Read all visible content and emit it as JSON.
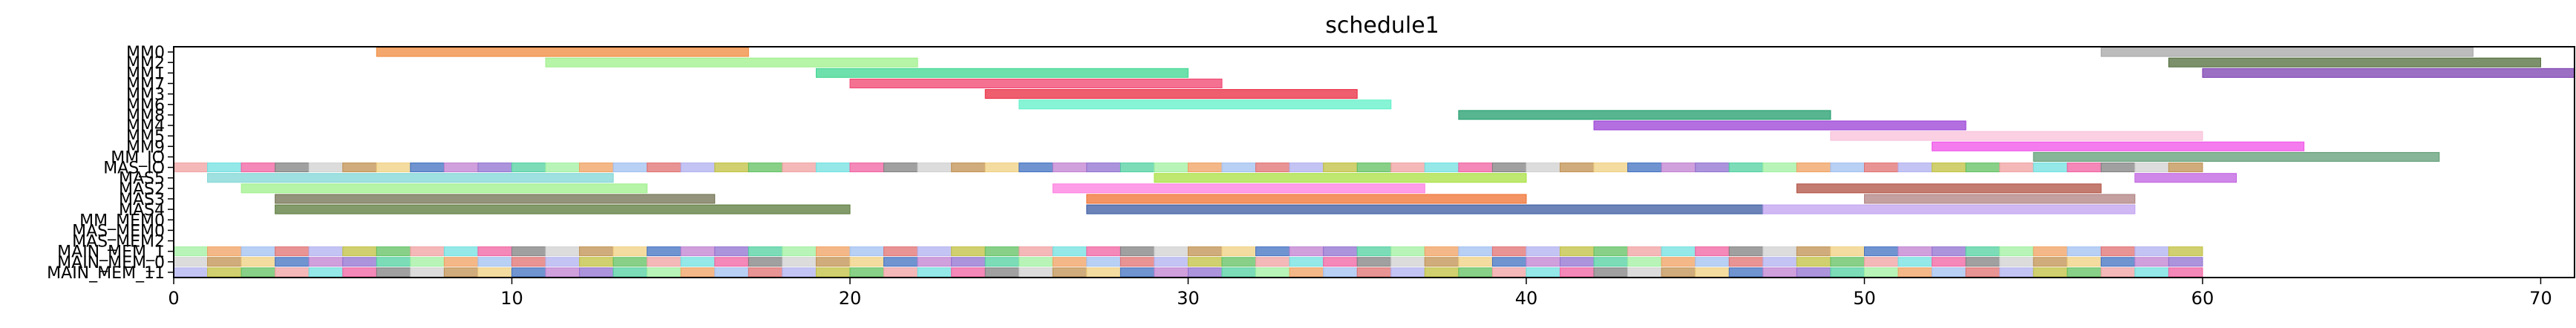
{
  "chart_data": {
    "type": "gantt",
    "title": "schedule1",
    "xlim": [
      0,
      71
    ],
    "x_ticks": [
      0,
      10,
      20,
      30,
      40,
      50,
      60,
      70
    ],
    "x_tick_labels": [
      "0",
      "10",
      "20",
      "30",
      "40",
      "50",
      "60",
      "70"
    ],
    "grid": false,
    "categories": [
      "MM0",
      "MM2",
      "MM1",
      "MM7",
      "MM3",
      "MM6",
      "MM8",
      "MM4",
      "MM5",
      "MM9",
      "MM_IO",
      "MAS_IO",
      "MAS5",
      "MAS2",
      "MAS3",
      "MAS4",
      "MM_MEM0",
      "MAS_MEM0",
      "MAS_MEM2",
      "MAIN_MEM_1",
      "MAIN_MEM_0",
      "MAIN_MEM_11"
    ],
    "tasks": [
      {
        "row": "MM0",
        "start": 6,
        "end": 17,
        "color": "#f08a3c"
      },
      {
        "row": "MM0",
        "start": 57,
        "end": 68,
        "color": "#a6a6a6"
      },
      {
        "row": "MM2",
        "start": 11,
        "end": 22,
        "color": "#9ef08a"
      },
      {
        "row": "MM2",
        "start": 59,
        "end": 70,
        "color": "#4f6b3a"
      },
      {
        "row": "MM1",
        "start": 19,
        "end": 30,
        "color": "#3ed68f"
      },
      {
        "row": "MM1",
        "start": 60,
        "end": 71,
        "color": "#7a3fb0"
      },
      {
        "row": "MM7",
        "start": 20,
        "end": 31,
        "color": "#f0426e"
      },
      {
        "row": "MM3",
        "start": 24,
        "end": 35,
        "color": "#e8283f"
      },
      {
        "row": "MM6",
        "start": 25,
        "end": 36,
        "color": "#60f0c8"
      },
      {
        "row": "MM8",
        "start": 38,
        "end": 49,
        "color": "#1f9c6b"
      },
      {
        "row": "MM4",
        "start": 42,
        "end": 53,
        "color": "#9a3fd6"
      },
      {
        "row": "MM5",
        "start": 49,
        "end": 60,
        "color": "#f8c0d8"
      },
      {
        "row": "MM9",
        "start": 52,
        "end": 63,
        "color": "#f050e8"
      },
      {
        "row": "MM_IO",
        "start": 55,
        "end": 67,
        "color": "#5f9c74"
      },
      {
        "row": "MAS5",
        "start": 1,
        "end": 13,
        "color": "#7fd6d6"
      },
      {
        "row": "MAS5",
        "start": 29,
        "end": 40,
        "color": "#a8e040"
      },
      {
        "row": "MAS5",
        "start": 58,
        "end": 61,
        "color": "#c060e0"
      },
      {
        "row": "MAS2",
        "start": 2,
        "end": 14,
        "color": "#9ef08a"
      },
      {
        "row": "MAS2",
        "start": 26,
        "end": 37,
        "color": "#ff7de0"
      },
      {
        "row": "MAS2",
        "start": 48,
        "end": 57,
        "color": "#b05040"
      },
      {
        "row": "MAS3",
        "start": 3,
        "end": 16,
        "color": "#707050"
      },
      {
        "row": "MAS3",
        "start": 27,
        "end": 40,
        "color": "#f07030"
      },
      {
        "row": "MAS3",
        "start": 50,
        "end": 58,
        "color": "#b08080"
      },
      {
        "row": "MAS4",
        "start": 3,
        "end": 20,
        "color": "#5a7a3a"
      },
      {
        "row": "MAS4",
        "start": 27,
        "end": 47,
        "color": "#3a5aa0"
      },
      {
        "row": "MAS4",
        "start": 47,
        "end": 58,
        "color": "#c0a0f0"
      }
    ],
    "strip_rows": [
      "MAS_IO",
      "MAIN_MEM_1",
      "MAIN_MEM_0",
      "MAIN_MEM_11"
    ],
    "strip_palette": [
      "#f0a0a0",
      "#a0c0f0",
      "#c080d0",
      "#808080",
      "#c0c040",
      "#a0f0a0",
      "#f0d080",
      "#70e0e0",
      "#e07070",
      "#9070d0",
      "#d0d0d0",
      "#60c060",
      "#f0a060",
      "#4070c0",
      "#f060a0",
      "#b0b0f0",
      "#50d0a0",
      "#c09050"
    ]
  }
}
